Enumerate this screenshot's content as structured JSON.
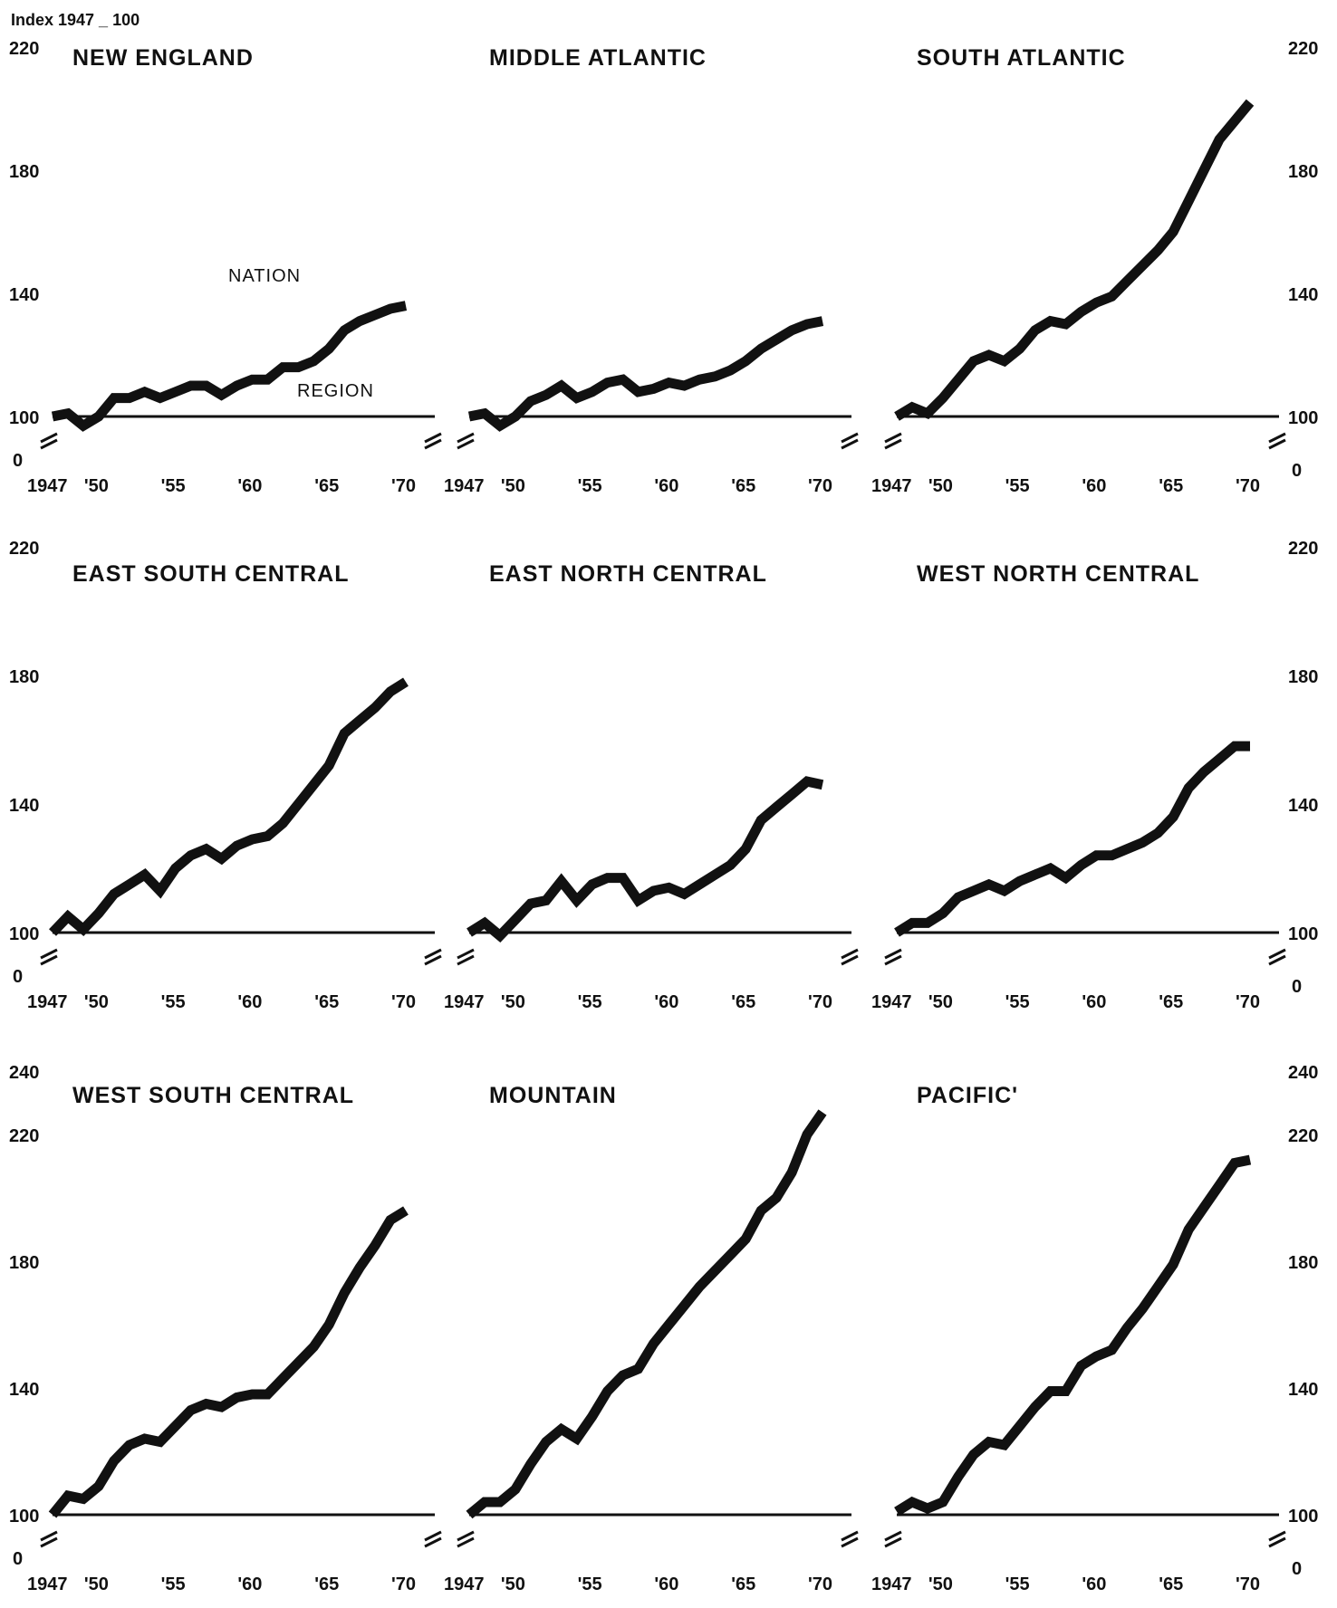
{
  "index_label": "Index 1947 _ 100",
  "x_tick_labels": [
    "1947",
    "'50",
    "'55",
    "'60",
    "'65",
    "'70"
  ],
  "annotations": {
    "nation": "NATION",
    "region": "REGION"
  },
  "chart_data": [
    {
      "type": "line",
      "title": "NEW ENGLAND",
      "ylim": [
        100,
        220
      ],
      "yticks": [
        100,
        140,
        180,
        220
      ],
      "x": [
        1947,
        1948,
        1949,
        1950,
        1951,
        1952,
        1953,
        1954,
        1955,
        1956,
        1957,
        1958,
        1959,
        1960,
        1961,
        1962,
        1963,
        1964,
        1965,
        1966,
        1967,
        1968,
        1969,
        1970
      ],
      "series": [
        {
          "name": "NATION",
          "values": [
            100,
            100,
            100,
            100,
            100,
            100,
            100,
            100,
            100,
            100,
            100,
            100,
            100,
            100,
            100,
            100,
            100,
            100,
            100,
            100,
            100,
            100,
            100,
            100
          ]
        },
        {
          "name": "REGION",
          "values": [
            100,
            101,
            97,
            100,
            106,
            106,
            108,
            106,
            108,
            110,
            110,
            107,
            110,
            112,
            112,
            116,
            116,
            118,
            122,
            128,
            131,
            133,
            135,
            136
          ]
        }
      ]
    },
    {
      "type": "line",
      "title": "MIDDLE ATLANTIC",
      "ylim": [
        100,
        220
      ],
      "yticks": [
        100,
        140,
        180,
        220
      ],
      "x": [
        1947,
        1948,
        1949,
        1950,
        1951,
        1952,
        1953,
        1954,
        1955,
        1956,
        1957,
        1958,
        1959,
        1960,
        1961,
        1962,
        1963,
        1964,
        1965,
        1966,
        1967,
        1968,
        1969,
        1970
      ],
      "series": [
        {
          "name": "NATION",
          "values": [
            100,
            100,
            100,
            100,
            100,
            100,
            100,
            100,
            100,
            100,
            100,
            100,
            100,
            100,
            100,
            100,
            100,
            100,
            100,
            100,
            100,
            100,
            100,
            100
          ]
        },
        {
          "name": "REGION",
          "values": [
            100,
            101,
            97,
            100,
            105,
            107,
            110,
            106,
            108,
            111,
            112,
            108,
            109,
            111,
            110,
            112,
            113,
            115,
            118,
            122,
            125,
            128,
            130,
            131
          ]
        }
      ]
    },
    {
      "type": "line",
      "title": "SOUTH ATLANTIC",
      "ylim": [
        100,
        220
      ],
      "yticks": [
        100,
        140,
        180,
        220
      ],
      "x": [
        1947,
        1948,
        1949,
        1950,
        1951,
        1952,
        1953,
        1954,
        1955,
        1956,
        1957,
        1958,
        1959,
        1960,
        1961,
        1962,
        1963,
        1964,
        1965,
        1966,
        1967,
        1968,
        1969,
        1970
      ],
      "series": [
        {
          "name": "NATION",
          "values": [
            100,
            100,
            100,
            100,
            100,
            100,
            100,
            100,
            100,
            100,
            100,
            100,
            100,
            100,
            100,
            100,
            100,
            100,
            100,
            100,
            100,
            100,
            100,
            100
          ]
        },
        {
          "name": "REGION",
          "values": [
            100,
            103,
            101,
            106,
            112,
            118,
            120,
            118,
            122,
            128,
            131,
            130,
            134,
            137,
            139,
            144,
            149,
            154,
            160,
            170,
            180,
            190,
            196,
            202
          ]
        }
      ]
    },
    {
      "type": "line",
      "title": "EAST SOUTH CENTRAL",
      "ylim": [
        100,
        220
      ],
      "yticks": [
        100,
        140,
        180,
        220
      ],
      "x": [
        1947,
        1948,
        1949,
        1950,
        1951,
        1952,
        1953,
        1954,
        1955,
        1956,
        1957,
        1958,
        1959,
        1960,
        1961,
        1962,
        1963,
        1964,
        1965,
        1966,
        1967,
        1968,
        1969,
        1970
      ],
      "series": [
        {
          "name": "NATION",
          "values": [
            100,
            100,
            100,
            100,
            100,
            100,
            100,
            100,
            100,
            100,
            100,
            100,
            100,
            100,
            100,
            100,
            100,
            100,
            100,
            100,
            100,
            100,
            100,
            100
          ]
        },
        {
          "name": "REGION",
          "values": [
            100,
            105,
            101,
            106,
            112,
            115,
            118,
            113,
            120,
            124,
            126,
            123,
            127,
            129,
            130,
            134,
            140,
            146,
            152,
            162,
            166,
            170,
            175,
            178
          ]
        }
      ]
    },
    {
      "type": "line",
      "title": "EAST NORTH CENTRAL",
      "ylim": [
        100,
        220
      ],
      "yticks": [
        100,
        140,
        180,
        220
      ],
      "x": [
        1947,
        1948,
        1949,
        1950,
        1951,
        1952,
        1953,
        1954,
        1955,
        1956,
        1957,
        1958,
        1959,
        1960,
        1961,
        1962,
        1963,
        1964,
        1965,
        1966,
        1967,
        1968,
        1969,
        1970
      ],
      "series": [
        {
          "name": "NATION",
          "values": [
            100,
            100,
            100,
            100,
            100,
            100,
            100,
            100,
            100,
            100,
            100,
            100,
            100,
            100,
            100,
            100,
            100,
            100,
            100,
            100,
            100,
            100,
            100,
            100
          ]
        },
        {
          "name": "REGION",
          "values": [
            100,
            103,
            99,
            104,
            109,
            110,
            116,
            110,
            115,
            117,
            117,
            110,
            113,
            114,
            112,
            115,
            118,
            121,
            126,
            135,
            139,
            143,
            147,
            146
          ]
        }
      ]
    },
    {
      "type": "line",
      "title": "WEST NORTH CENTRAL",
      "ylim": [
        100,
        220
      ],
      "yticks": [
        100,
        140,
        180,
        220
      ],
      "x": [
        1947,
        1948,
        1949,
        1950,
        1951,
        1952,
        1953,
        1954,
        1955,
        1956,
        1957,
        1958,
        1959,
        1960,
        1961,
        1962,
        1963,
        1964,
        1965,
        1966,
        1967,
        1968,
        1969,
        1970
      ],
      "series": [
        {
          "name": "NATION",
          "values": [
            100,
            100,
            100,
            100,
            100,
            100,
            100,
            100,
            100,
            100,
            100,
            100,
            100,
            100,
            100,
            100,
            100,
            100,
            100,
            100,
            100,
            100,
            100,
            100
          ]
        },
        {
          "name": "REGION",
          "values": [
            100,
            103,
            103,
            106,
            111,
            113,
            115,
            113,
            116,
            118,
            120,
            117,
            121,
            124,
            124,
            126,
            128,
            131,
            136,
            145,
            150,
            154,
            158,
            158
          ]
        }
      ]
    },
    {
      "type": "line",
      "title": "WEST SOUTH CENTRAL",
      "ylim": [
        100,
        240
      ],
      "yticks": [
        100,
        140,
        180,
        220,
        240
      ],
      "x": [
        1947,
        1948,
        1949,
        1950,
        1951,
        1952,
        1953,
        1954,
        1955,
        1956,
        1957,
        1958,
        1959,
        1960,
        1961,
        1962,
        1963,
        1964,
        1965,
        1966,
        1967,
        1968,
        1969,
        1970
      ],
      "series": [
        {
          "name": "NATION",
          "values": [
            100,
            100,
            100,
            100,
            100,
            100,
            100,
            100,
            100,
            100,
            100,
            100,
            100,
            100,
            100,
            100,
            100,
            100,
            100,
            100,
            100,
            100,
            100,
            100
          ]
        },
        {
          "name": "REGION",
          "values": [
            100,
            106,
            105,
            109,
            117,
            122,
            124,
            123,
            128,
            133,
            135,
            134,
            137,
            138,
            138,
            143,
            148,
            153,
            160,
            170,
            178,
            185,
            193,
            196
          ]
        }
      ]
    },
    {
      "type": "line",
      "title": "MOUNTAIN",
      "ylim": [
        100,
        240
      ],
      "yticks": [
        100,
        140,
        180,
        220,
        240
      ],
      "x": [
        1947,
        1948,
        1949,
        1950,
        1951,
        1952,
        1953,
        1954,
        1955,
        1956,
        1957,
        1958,
        1959,
        1960,
        1961,
        1962,
        1963,
        1964,
        1965,
        1966,
        1967,
        1968,
        1969,
        1970
      ],
      "series": [
        {
          "name": "NATION",
          "values": [
            100,
            100,
            100,
            100,
            100,
            100,
            100,
            100,
            100,
            100,
            100,
            100,
            100,
            100,
            100,
            100,
            100,
            100,
            100,
            100,
            100,
            100,
            100,
            100
          ]
        },
        {
          "name": "REGION",
          "values": [
            100,
            104,
            104,
            108,
            116,
            123,
            127,
            124,
            131,
            139,
            144,
            146,
            154,
            160,
            166,
            172,
            177,
            182,
            187,
            196,
            200,
            208,
            220,
            227
          ]
        }
      ]
    },
    {
      "type": "line",
      "title": "PACIFIC'",
      "ylim": [
        100,
        240
      ],
      "yticks": [
        100,
        140,
        180,
        220,
        240
      ],
      "x": [
        1947,
        1948,
        1949,
        1950,
        1951,
        1952,
        1953,
        1954,
        1955,
        1956,
        1957,
        1958,
        1959,
        1960,
        1961,
        1962,
        1963,
        1964,
        1965,
        1966,
        1967,
        1968,
        1969,
        1970
      ],
      "series": [
        {
          "name": "NATION",
          "values": [
            100,
            100,
            100,
            100,
            100,
            100,
            100,
            100,
            100,
            100,
            100,
            100,
            100,
            100,
            100,
            100,
            100,
            100,
            100,
            100,
            100,
            100,
            100,
            100
          ]
        },
        {
          "name": "REGION",
          "values": [
            101,
            104,
            102,
            104,
            112,
            119,
            123,
            122,
            128,
            134,
            139,
            139,
            147,
            150,
            152,
            159,
            165,
            172,
            179,
            190,
            197,
            204,
            211,
            212
          ]
        }
      ]
    }
  ]
}
